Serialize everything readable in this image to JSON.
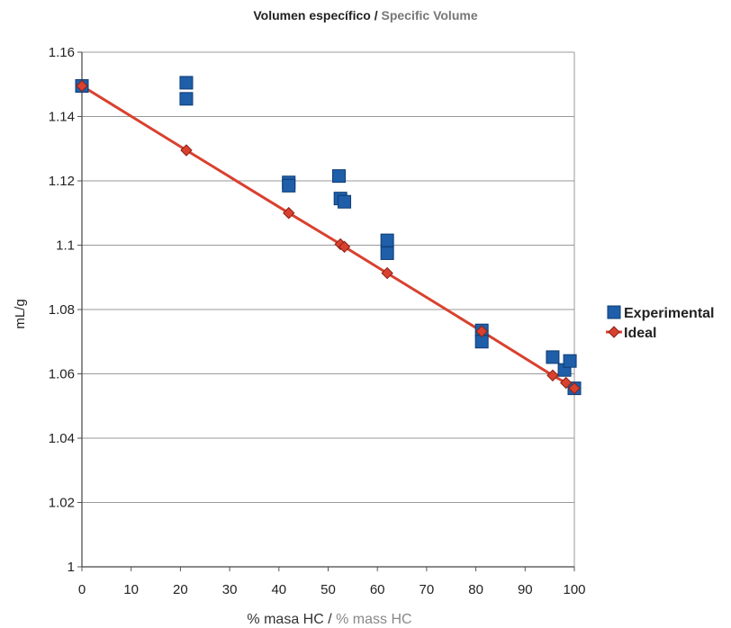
{
  "chart_data": {
    "type": "scatter",
    "title": "Volumen específico",
    "title_separator": " / ",
    "title_alt": "Specific Volume",
    "xlabel": "% masa HC",
    "xlabel_separator": " / ",
    "xlabel_alt": "% mass HC",
    "ylabel": "mL/g",
    "xlim": [
      0,
      100
    ],
    "ylim": [
      1.0,
      1.16
    ],
    "x_ticks": [
      "0",
      "10",
      "20",
      "30",
      "40",
      "50",
      "60",
      "70",
      "80",
      "90",
      "100"
    ],
    "y_ticks": [
      "1",
      "1.02",
      "1.04",
      "1.06",
      "1.08",
      "1.1",
      "1.12",
      "1.14",
      "1.16"
    ],
    "grid": "horizontal",
    "legend_position": "right",
    "series": [
      {
        "name": "Experimental",
        "marker": "square",
        "color": "#1f5ea8",
        "points": [
          {
            "x": 0,
            "y": 1.1495
          },
          {
            "x": 21.2,
            "y": 1.1505
          },
          {
            "x": 21.2,
            "y": 1.1455
          },
          {
            "x": 42.0,
            "y": 1.1195
          },
          {
            "x": 42.0,
            "y": 1.1185
          },
          {
            "x": 52.2,
            "y": 1.1215
          },
          {
            "x": 52.5,
            "y": 1.1145
          },
          {
            "x": 53.3,
            "y": 1.1135
          },
          {
            "x": 62.0,
            "y": 1.1015
          },
          {
            "x": 62.0,
            "y": 1.0975
          },
          {
            "x": 81.2,
            "y": 1.0735
          },
          {
            "x": 81.2,
            "y": 1.07
          },
          {
            "x": 95.6,
            "y": 1.0652
          },
          {
            "x": 98.0,
            "y": 1.0612
          },
          {
            "x": 99.1,
            "y": 1.064
          },
          {
            "x": 100,
            "y": 1.0555
          }
        ]
      },
      {
        "name": "Ideal",
        "marker": "diamond",
        "color": "#d9412f",
        "line": true,
        "points": [
          {
            "x": 0,
            "y": 1.1495
          },
          {
            "x": 21.2,
            "y": 1.1295
          },
          {
            "x": 42.0,
            "y": 1.11
          },
          {
            "x": 52.5,
            "y": 1.1003
          },
          {
            "x": 53.3,
            "y": 1.0995
          },
          {
            "x": 62.0,
            "y": 1.0913
          },
          {
            "x": 81.2,
            "y": 1.0732
          },
          {
            "x": 95.6,
            "y": 1.0595
          },
          {
            "x": 98.3,
            "y": 1.0572
          },
          {
            "x": 100,
            "y": 1.0555
          }
        ]
      }
    ]
  }
}
